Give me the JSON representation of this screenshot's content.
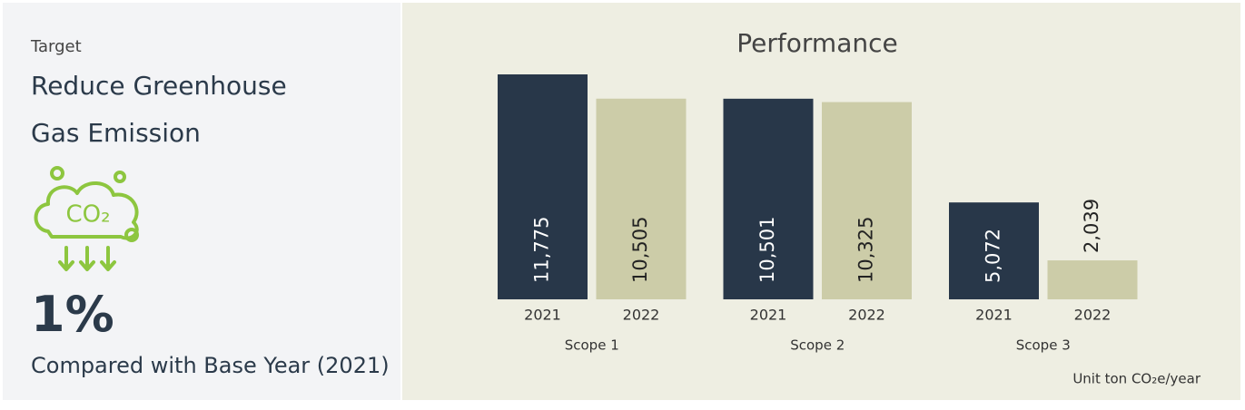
{
  "panel": {
    "label": "Target",
    "title": "Reduce Greenhouse Gas Emission",
    "icon_text": "CO₂",
    "metric": "1%",
    "caption": "Compared with Base Year (2021)"
  },
  "chart_data": {
    "type": "bar",
    "title": "Performance",
    "categories": [
      "Scope 1",
      "Scope 2",
      "Scope 3"
    ],
    "series": [
      {
        "name": "2021",
        "color": "#283749",
        "values": [
          11775,
          10501,
          5072
        ],
        "value_labels": [
          "11,775",
          "10,501",
          "5,072"
        ]
      },
      {
        "name": "2022",
        "color": "#cccca8",
        "values": [
          10505,
          10325,
          2039
        ],
        "value_labels": [
          "10,505",
          "10,325",
          "2,039"
        ]
      }
    ],
    "note": "Unit ton CO₂e/year"
  }
}
